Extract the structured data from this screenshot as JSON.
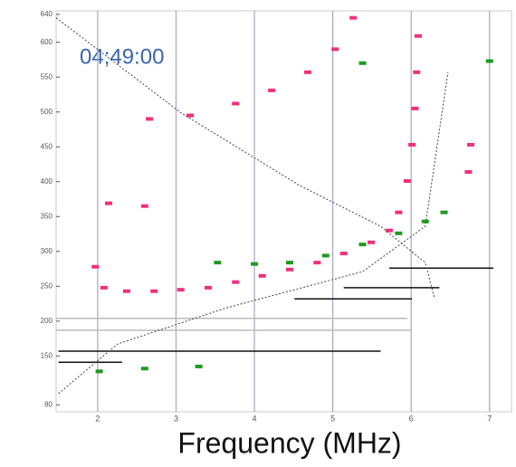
{
  "chart_data": {
    "type": "scatter",
    "annotation": "04;49:00",
    "xlabel": "Frequency (MHz)",
    "xlim": [
      1.47,
      7.28
    ],
    "ylim": [
      70,
      645
    ],
    "xticks": [
      2,
      3,
      4,
      5,
      6,
      7
    ],
    "yticks": [
      80,
      150,
      200,
      250,
      300,
      350,
      400,
      450,
      500,
      550,
      600,
      640
    ],
    "grid": true,
    "grid_color": "#a9a4c4",
    "series": [
      {
        "kind": "points",
        "color": "#f0307a",
        "x": [
          1.97,
          2.08,
          2.37,
          2.72,
          3.06,
          3.41,
          3.76,
          4.1,
          4.45,
          4.8,
          5.14,
          5.49,
          5.72,
          5.84,
          5.95,
          6.01,
          6.05,
          6.07,
          6.09,
          2.66,
          3.18,
          3.76,
          4.22,
          4.68,
          5.03,
          5.26,
          2.14,
          2.6,
          6.76,
          6.73
        ],
        "values": [
          278,
          248,
          243,
          243,
          245,
          248,
          256,
          265,
          274,
          284,
          297,
          313,
          330,
          356,
          401,
          453,
          505,
          557,
          609,
          490,
          495,
          512,
          531,
          557,
          590,
          635,
          369,
          365,
          453,
          414
        ]
      },
      {
        "kind": "points",
        "color": "#1e9a1e",
        "x": [
          3.53,
          4.0,
          4.45,
          4.91,
          5.38,
          5.84,
          6.18,
          6.42,
          2.02,
          2.6,
          3.29,
          5.38,
          7.0
        ],
        "values": [
          284,
          282,
          284,
          294,
          310,
          326,
          343,
          356,
          128,
          132,
          135,
          570,
          573
        ]
      },
      {
        "kind": "segments",
        "color": "#111111",
        "x": [
          1.5,
          1.5,
          4.51,
          5.14,
          5.72
        ],
        "x2": [
          2.31,
          5.61,
          6.01,
          6.36,
          7.05
        ],
        "values": [
          141,
          157,
          232,
          248,
          276
        ]
      },
      {
        "kind": "segments",
        "color": "#bbbbbb",
        "x": [
          1.47,
          1.47
        ],
        "x2": [
          5.95,
          6.01
        ],
        "values": [
          204,
          187
        ]
      },
      {
        "kind": "dashed-line",
        "color": "#444444",
        "x": [
          1.47,
          3.06,
          4.57,
          5.61,
          6.18,
          6.3
        ],
        "values": [
          635,
          499,
          395,
          336,
          284,
          232
        ]
      },
      {
        "kind": "dashed-line",
        "color": "#444444",
        "x": [
          1.5,
          2.25,
          3.64,
          5.38,
          6.18,
          6.47
        ],
        "values": [
          96,
          167,
          219,
          271,
          336,
          557
        ]
      }
    ]
  }
}
